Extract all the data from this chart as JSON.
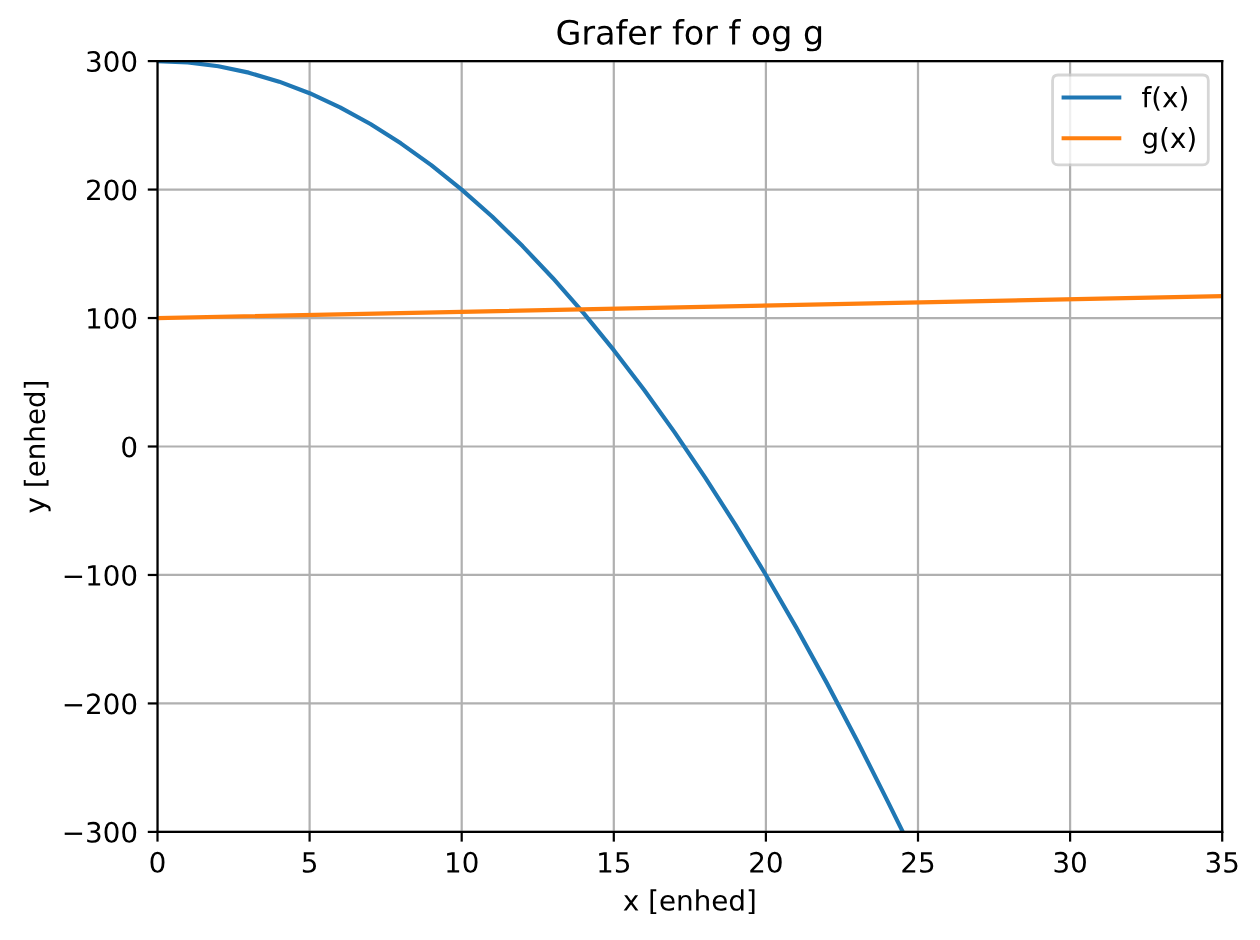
{
  "chart_data": {
    "type": "line",
    "title": "Grafer for f og g",
    "xlabel": "x [enhed]",
    "ylabel": "y [enhed]",
    "xlim": [
      0,
      35
    ],
    "ylim": [
      -300,
      300
    ],
    "xticks": [
      0,
      5,
      10,
      15,
      20,
      25,
      30,
      35
    ],
    "yticks": [
      {
        "value": -300,
        "label": "−300"
      },
      {
        "value": -200,
        "label": "−200"
      },
      {
        "value": -100,
        "label": "−100"
      },
      0,
      100,
      200,
      300
    ],
    "grid": true,
    "legend": "top right",
    "series": [
      {
        "name": "f(x)",
        "color": "#1f77b4",
        "x": [
          0,
          1,
          2,
          3,
          4,
          5,
          6,
          7,
          8,
          9,
          10,
          11,
          12,
          13,
          14,
          15,
          16,
          17,
          18,
          19,
          20,
          21,
          22,
          23,
          24,
          24.5
        ],
        "values": [
          300,
          299,
          296,
          291,
          284,
          275,
          264,
          251,
          236,
          219,
          200,
          179,
          156,
          131,
          104,
          75,
          44,
          11,
          -24,
          -61,
          -100,
          -141,
          -184,
          -229,
          -276,
          -300
        ]
      },
      {
        "name": "g(x)",
        "color": "#ff7f0e",
        "x": [
          0,
          35
        ],
        "values": [
          100,
          117
        ]
      }
    ]
  }
}
